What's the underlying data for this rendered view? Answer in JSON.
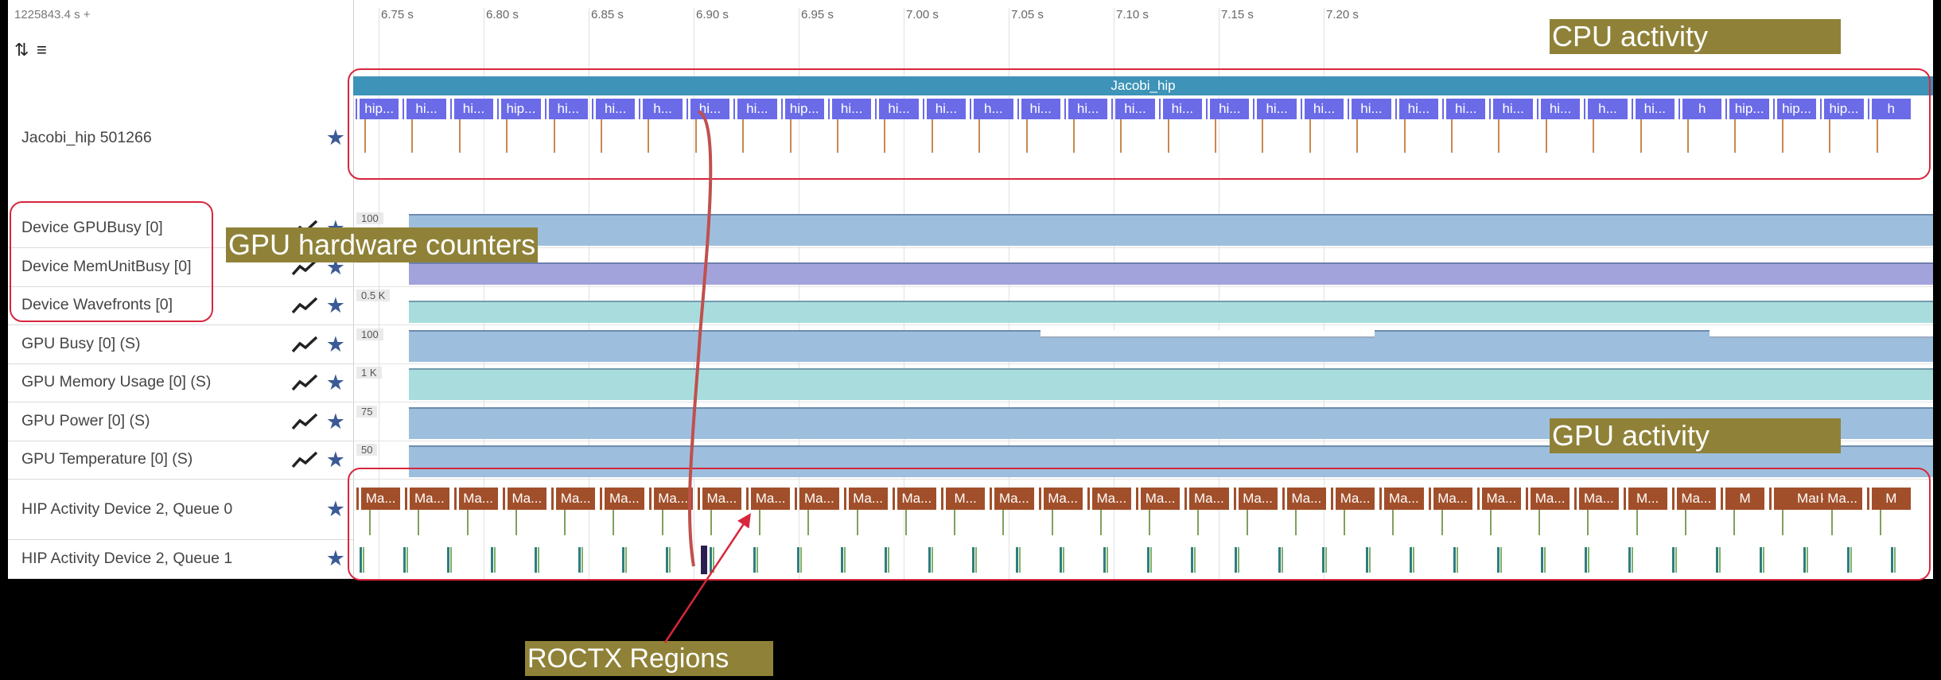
{
  "time_offset": "1225843.4 s +",
  "time_ticks": [
    {
      "label": "6.75 s",
      "t": 6.75
    },
    {
      "label": "6.80 s",
      "t": 6.8
    },
    {
      "label": "6.85 s",
      "t": 6.85
    },
    {
      "label": "6.90 s",
      "t": 6.9
    },
    {
      "label": "6.95 s",
      "t": 6.95
    },
    {
      "label": "7.00 s",
      "t": 7.0
    },
    {
      "label": "7.05 s",
      "t": 7.05
    },
    {
      "label": "7.10 s",
      "t": 7.1
    },
    {
      "label": "7.15 s",
      "t": 7.15
    },
    {
      "label": "7.20 s",
      "t": 7.2
    }
  ],
  "process_track": {
    "label": "Jacobi_hip 501266",
    "span_label": "Jacobi_hip",
    "slice_labels": [
      "hip...",
      "hi...",
      "hi...",
      "hip...",
      "hi...",
      "hi...",
      "h...",
      "hi...",
      "hi...",
      "hip...",
      "hi...",
      "hi...",
      "hi...",
      "h...",
      "hi...",
      "hi...",
      "hi...",
      "hi...",
      "hi...",
      "hi...",
      "hi...",
      "hi...",
      "hi...",
      "hi...",
      "hi...",
      "hi...",
      "h...",
      "hi...",
      "h",
      "hip...",
      "hip...",
      "hip...",
      "h"
    ]
  },
  "counter_tracks": [
    {
      "label": "Device GPUBusy [0]",
      "scale": "100",
      "color": "#9dbfdd"
    },
    {
      "label": "Device MemUnitBusy [0]",
      "scale": "5",
      "color": "#a3a3dc"
    },
    {
      "label": "Device Wavefronts [0]",
      "scale": "0.5 K",
      "color": "#a9dddd"
    },
    {
      "label": "GPU Busy [0] (S)",
      "scale": "100",
      "color": "#9dbfdd"
    },
    {
      "label": "GPU Memory Usage [0] (S)",
      "scale": "1 K",
      "color": "#a9dddd"
    },
    {
      "label": "GPU Power [0] (S)",
      "scale": "75",
      "color": "#9dbfdd"
    },
    {
      "label": "GPU Temperature [0] (S)",
      "scale": "50",
      "color": "#9dbfdd"
    }
  ],
  "hip_tracks": [
    {
      "label": "HIP Activity Device 2, Queue 0"
    },
    {
      "label": "HIP Activity Device 2, Queue 1"
    }
  ],
  "queue0_slices": [
    "Ma...",
    "Ma...",
    "Ma...",
    "Ma...",
    "Ma...",
    "Ma...",
    "Ma...",
    "Ma...",
    "Ma...",
    "Ma...",
    "Ma...",
    "Ma...",
    "M...",
    "Ma...",
    "Ma...",
    "Ma...",
    "Ma...",
    "Ma...",
    "Ma...",
    "Ma...",
    "Ma...",
    "Ma...",
    "Ma...",
    "Ma...",
    "Ma...",
    "Ma...",
    "M...",
    "Ma...",
    "M",
    "Marker",
    "Ma...",
    "M"
  ],
  "annotations": {
    "cpu_activity": "CPU activity",
    "gpu_hw_counters": "GPU hardware counters",
    "gpu_activity": "GPU activity",
    "roctx_regions": "ROCTX Regions"
  },
  "colors": {
    "process_span": "#3d93b8",
    "cpu_slice": "#6b6be8",
    "gpu_slice": "#a14f2a",
    "star": "#3b5a96",
    "callout": "#8f8238",
    "highlight": "#d7263d"
  }
}
